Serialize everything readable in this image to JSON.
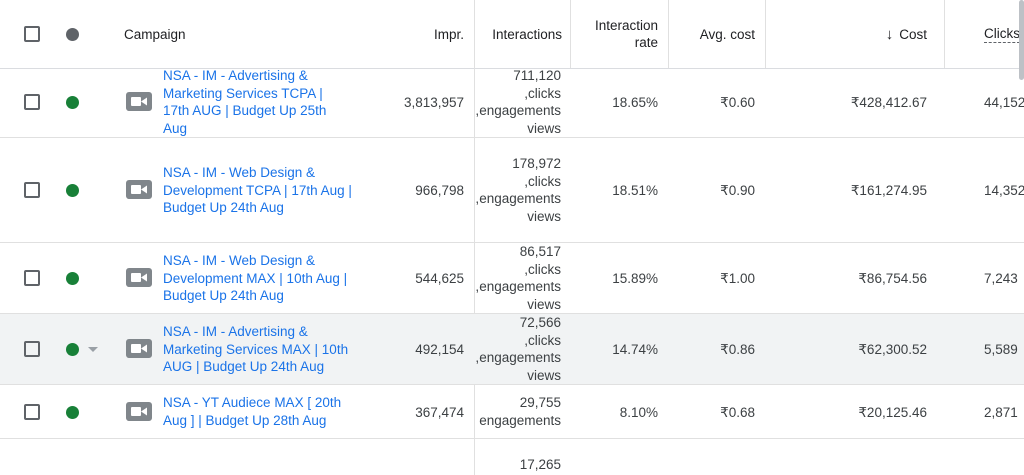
{
  "header": {
    "campaign": "Campaign",
    "impr": "Impr.",
    "interactions": "Interactions",
    "interaction_rate_1": "Interaction",
    "interaction_rate_2": "rate",
    "avg_cost": "Avg. cost",
    "cost": "Cost",
    "cost_sort_icon": "arrow-down-icon",
    "clicks": "Clicks"
  },
  "rows": [
    {
      "name_lines": [
        "NSA - IM - Advertising &",
        "Marketing Services TCPA |",
        "17th AUG | Budget Up 25th",
        "Aug"
      ],
      "impr": "3,813,957",
      "interactions": [
        "711,120",
        "clicks,",
        "engagements,",
        "views"
      ],
      "rate": "18.65%",
      "avg_cost": "₹0.60",
      "cost": "₹428,412.67",
      "clicks": "44,152"
    },
    {
      "name_lines": [
        "NSA - IM - Web Design &",
        "Development TCPA | 17th Aug |",
        "Budget Up 24th Aug"
      ],
      "impr": "966,798",
      "interactions": [
        "178,972",
        "clicks,",
        "engagements,",
        "views"
      ],
      "rate": "18.51%",
      "avg_cost": "₹0.90",
      "cost": "₹161,274.95",
      "clicks": "14,352"
    },
    {
      "name_lines": [
        "NSA - IM - Web Design &",
        "Development MAX | 10th Aug |",
        "Budget Up 24th Aug"
      ],
      "impr": "544,625",
      "interactions": [
        "86,517",
        "clicks,",
        "engagements,",
        "views"
      ],
      "rate": "15.89%",
      "avg_cost": "₹1.00",
      "cost": "₹86,754.56",
      "clicks": "7,243"
    },
    {
      "name_lines": [
        "NSA - IM - Advertising &",
        "Marketing Services MAX | 10th",
        "AUG | Budget Up 24th Aug"
      ],
      "impr": "492,154",
      "interactions": [
        "72,566",
        "clicks,",
        "engagements,",
        "views"
      ],
      "rate": "14.74%",
      "avg_cost": "₹0.86",
      "cost": "₹62,300.52",
      "clicks": "5,589"
    },
    {
      "name_lines": [
        "NSA - YT Audiece MAX [ 20th",
        "Aug ] | Budget Up 28th Aug"
      ],
      "impr": "367,474",
      "interactions": [
        "29,755",
        "engagements"
      ],
      "rate": "8.10%",
      "avg_cost": "₹0.68",
      "cost": "₹20,125.46",
      "clicks": "2,871"
    },
    {
      "name_lines": [],
      "impr": "",
      "interactions": [
        "17,265"
      ],
      "rate": "",
      "avg_cost": "",
      "cost": "",
      "clicks": ""
    }
  ],
  "status_colors": {
    "enabled": "#188038",
    "header": "#5f6368"
  },
  "campaign_type_icon": "video-camera-icon"
}
